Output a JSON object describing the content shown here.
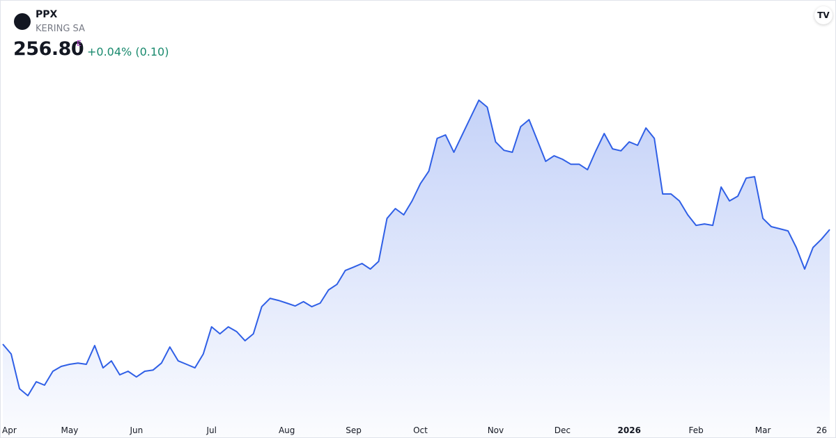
{
  "header": {
    "symbol": "PPX",
    "name": "KERING SA",
    "price": "256.80",
    "price_flag": "E",
    "change": "+0.04% (0.10)"
  },
  "chart_data": {
    "type": "area",
    "color": "#2f5fe6",
    "values": [
      192.5,
      187.0,
      167.5,
      163.6,
      171.4,
      169.5,
      177.3,
      180.0,
      181.2,
      181.9,
      181.2,
      191.7,
      179.2,
      183.1,
      175.3,
      177.3,
      174.1,
      177.3,
      178.0,
      181.9,
      190.9,
      183.1,
      181.2,
      179.2,
      187.0,
      202.2,
      198.3,
      202.2,
      199.5,
      194.4,
      198.3,
      213.5,
      218.2,
      217.0,
      215.5,
      213.9,
      216.3,
      213.5,
      215.5,
      222.9,
      226.0,
      233.8,
      235.7,
      237.7,
      234.6,
      238.9,
      263.0,
      268.5,
      265.0,
      272.8,
      282.5,
      289.5,
      307.9,
      309.8,
      300.1,
      309.8,
      319.6,
      329.3,
      325.4,
      305.9,
      301.2,
      300.1,
      314.5,
      318.4,
      306.7,
      295.0,
      298.1,
      296.2,
      293.4,
      293.4,
      290.3,
      300.9,
      310.6,
      302.0,
      300.9,
      305.9,
      304.0,
      313.7,
      307.9,
      276.7,
      276.7,
      272.8,
      265.0,
      259.1,
      259.9,
      259.1,
      280.6,
      272.8,
      275.5,
      285.6,
      286.4,
      263.0,
      258.4,
      257.2,
      256.0,
      246.7,
      234.6,
      246.7,
      251.3,
      256.8
    ],
    "xlim": [
      0,
      99
    ],
    "xticks": [
      {
        "value": 0,
        "label": "Apr"
      },
      {
        "value": 8,
        "label": "May"
      },
      {
        "value": 16,
        "label": "Jun"
      },
      {
        "value": 25,
        "label": "Jul"
      },
      {
        "value": 34,
        "label": "Aug"
      },
      {
        "value": 42,
        "label": "Sep"
      },
      {
        "value": 50,
        "label": "Oct"
      },
      {
        "value": 59,
        "label": "Nov"
      },
      {
        "value": 67,
        "label": "Dec"
      },
      {
        "value": 75,
        "label": "2026",
        "bold": true
      },
      {
        "value": 83,
        "label": "Feb"
      },
      {
        "value": 91,
        "label": "Mar"
      },
      {
        "value": 98,
        "label": "26"
      }
    ],
    "ylim": [
      150,
      350
    ]
  }
}
